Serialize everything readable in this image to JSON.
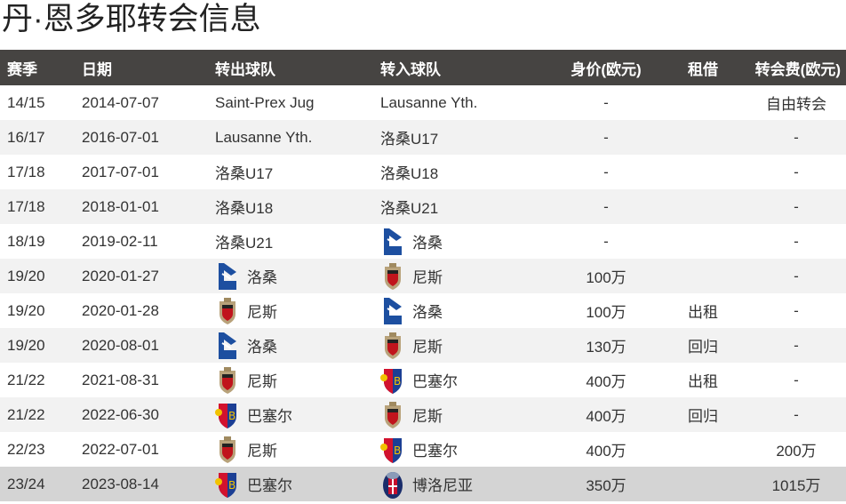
{
  "title": "丹·恩多耶转会信息",
  "headers": [
    "赛季",
    "日期",
    "转出球队",
    "转入球队",
    "身价(欧元)",
    "租借",
    "转会费(欧元)"
  ],
  "rows": [
    {
      "season": "14/15",
      "date": "2014-07-07",
      "from": "Saint-Prex Jug",
      "from_logo": "",
      "to": "Lausanne Yth.",
      "to_logo": "",
      "value": "-",
      "loan": "",
      "fee": "自由转会"
    },
    {
      "season": "16/17",
      "date": "2016-07-01",
      "from": "Lausanne Yth.",
      "from_logo": "",
      "to": "洛桑U17",
      "to_logo": "",
      "value": "-",
      "loan": "",
      "fee": "-"
    },
    {
      "season": "17/18",
      "date": "2017-07-01",
      "from": "洛桑U17",
      "from_logo": "",
      "to": "洛桑U18",
      "to_logo": "",
      "value": "-",
      "loan": "",
      "fee": "-"
    },
    {
      "season": "17/18",
      "date": "2018-01-01",
      "from": "洛桑U18",
      "from_logo": "",
      "to": "洛桑U21",
      "to_logo": "",
      "value": "-",
      "loan": "",
      "fee": "-"
    },
    {
      "season": "18/19",
      "date": "2019-02-11",
      "from": "洛桑U21",
      "from_logo": "",
      "to": "洛桑",
      "to_logo": "lausanne-logo",
      "value": "-",
      "loan": "",
      "fee": "-"
    },
    {
      "season": "19/20",
      "date": "2020-01-27",
      "from": "洛桑",
      "from_logo": "lausanne-logo",
      "to": "尼斯",
      "to_logo": "nice-logo",
      "value": "100万",
      "loan": "",
      "fee": "-"
    },
    {
      "season": "19/20",
      "date": "2020-01-28",
      "from": "尼斯",
      "from_logo": "nice-logo",
      "to": "洛桑",
      "to_logo": "lausanne-logo",
      "value": "100万",
      "loan": "出租",
      "fee": "-"
    },
    {
      "season": "19/20",
      "date": "2020-08-01",
      "from": "洛桑",
      "from_logo": "lausanne-logo",
      "to": "尼斯",
      "to_logo": "nice-logo",
      "value": "130万",
      "loan": "回归",
      "fee": "-"
    },
    {
      "season": "21/22",
      "date": "2021-08-31",
      "from": "尼斯",
      "from_logo": "nice-logo",
      "to": "巴塞尔",
      "to_logo": "basel-logo",
      "value": "400万",
      "loan": "出租",
      "fee": "-"
    },
    {
      "season": "21/22",
      "date": "2022-06-30",
      "from": "巴塞尔",
      "from_logo": "basel-logo",
      "to": "尼斯",
      "to_logo": "nice-logo",
      "value": "400万",
      "loan": "回归",
      "fee": "-"
    },
    {
      "season": "22/23",
      "date": "2022-07-01",
      "from": "尼斯",
      "from_logo": "nice-logo",
      "to": "巴塞尔",
      "to_logo": "basel-logo",
      "value": "400万",
      "loan": "",
      "fee": "200万"
    },
    {
      "season": "23/24",
      "date": "2023-08-14",
      "from": "巴塞尔",
      "from_logo": "basel-logo",
      "to": "博洛尼亚",
      "to_logo": "bologna-logo",
      "value": "350万",
      "loan": "",
      "fee": "1015万",
      "highlighted": true
    }
  ]
}
